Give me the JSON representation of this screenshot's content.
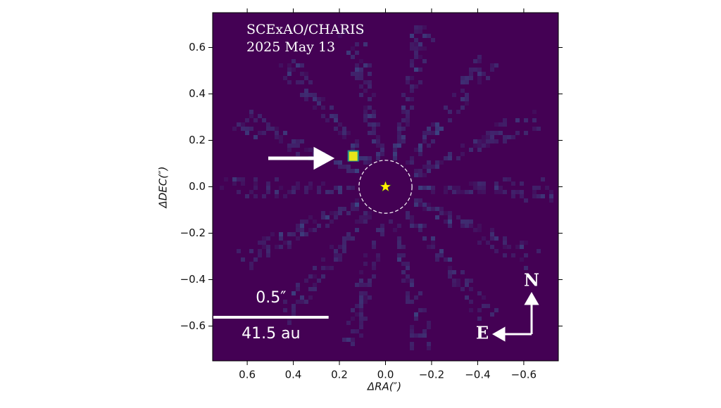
{
  "chart_data": {
    "type": "image",
    "title": "SCExAO/CHARIS",
    "subtitle": "2025 May 13",
    "x_label": "ΔRA(″)",
    "y_label": "ΔDEC(″)",
    "xlim": [
      0.75,
      -0.75
    ],
    "ylim": [
      -0.75,
      0.75
    ],
    "xticks": [
      0.6,
      0.4,
      0.2,
      {
        "value": 0,
        "label": "0.0"
      },
      {
        "value": -0.2,
        "label": "−0.2"
      },
      {
        "value": -0.4,
        "label": "−0.4"
      },
      {
        "value": -0.6,
        "label": "−0.6"
      }
    ],
    "yticks": [
      {
        "value": -0.6,
        "label": "−0.6"
      },
      {
        "value": -0.4,
        "label": "−0.4"
      },
      {
        "value": -0.2,
        "label": "−0.2"
      },
      {
        "value": 0,
        "label": "0.0"
      },
      0.2,
      0.4,
      0.6
    ],
    "star": {
      "x": 0,
      "y": 0,
      "color": "#ffee00"
    },
    "companion": {
      "x": 0.14,
      "y": 0.13,
      "color": "#e8e419"
    },
    "mask_radius": 0.115,
    "scale_bar": {
      "length": 0.5,
      "label": "0.5″",
      "sublabel": "41.5 au"
    },
    "compass": {
      "north": "N",
      "east": "E"
    },
    "background": "#440154"
  }
}
